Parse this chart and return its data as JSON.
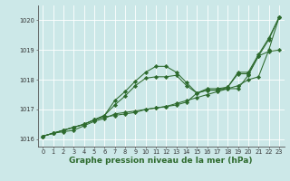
{
  "xlabel": "Graphe pression niveau de la mer (hPa)",
  "x": [
    0,
    1,
    2,
    3,
    4,
    5,
    6,
    7,
    8,
    9,
    10,
    11,
    12,
    13,
    14,
    15,
    16,
    17,
    18,
    19,
    20,
    21,
    22,
    23
  ],
  "series": [
    [
      1016.1,
      1016.2,
      1016.3,
      1016.4,
      1016.5,
      1016.65,
      1016.75,
      1016.8,
      1016.85,
      1016.9,
      1017.0,
      1017.05,
      1017.1,
      1017.2,
      1017.3,
      1017.4,
      1017.5,
      1017.6,
      1017.7,
      1017.8,
      1018.0,
      1018.1,
      1019.0,
      1020.1
    ],
    [
      1016.1,
      1016.2,
      1016.3,
      1016.4,
      1016.5,
      1016.65,
      1016.8,
      1017.3,
      1017.6,
      1017.95,
      1018.25,
      1018.45,
      1018.45,
      1018.25,
      1017.9,
      1017.55,
      1017.7,
      1017.7,
      1017.75,
      1018.25,
      1018.25,
      1018.85,
      1019.4,
      1020.1
    ],
    [
      1016.1,
      1016.2,
      1016.3,
      1016.4,
      1016.5,
      1016.65,
      1016.8,
      1017.15,
      1017.45,
      1017.8,
      1018.05,
      1018.1,
      1018.1,
      1018.15,
      1017.8,
      1017.55,
      1017.65,
      1017.65,
      1017.75,
      1018.2,
      1018.2,
      1018.8,
      1019.35,
      1020.1
    ],
    [
      1016.1,
      1016.2,
      1016.25,
      1016.3,
      1016.45,
      1016.6,
      1016.7,
      1016.85,
      1016.9,
      1016.95,
      1017.0,
      1017.05,
      1017.1,
      1017.15,
      1017.25,
      1017.55,
      1017.65,
      1017.65,
      1017.7,
      1017.7,
      1018.15,
      1018.8,
      1018.95,
      1019.0
    ]
  ],
  "line_color": "#2d6a2d",
  "marker": "D",
  "marker_size": 2.2,
  "bg_color": "#cce8e8",
  "grid_color": "#ffffff",
  "ylim": [
    1015.75,
    1020.5
  ],
  "yticks": [
    1016,
    1017,
    1018,
    1019,
    1020
  ],
  "xticks": [
    0,
    1,
    2,
    3,
    4,
    5,
    6,
    7,
    8,
    9,
    10,
    11,
    12,
    13,
    14,
    15,
    16,
    17,
    18,
    19,
    20,
    21,
    22,
    23
  ],
  "tick_fontsize": 4.8,
  "xlabel_fontsize": 6.5,
  "xlabel_bold": true,
  "linewidth": 0.75,
  "spine_color": "#555555"
}
